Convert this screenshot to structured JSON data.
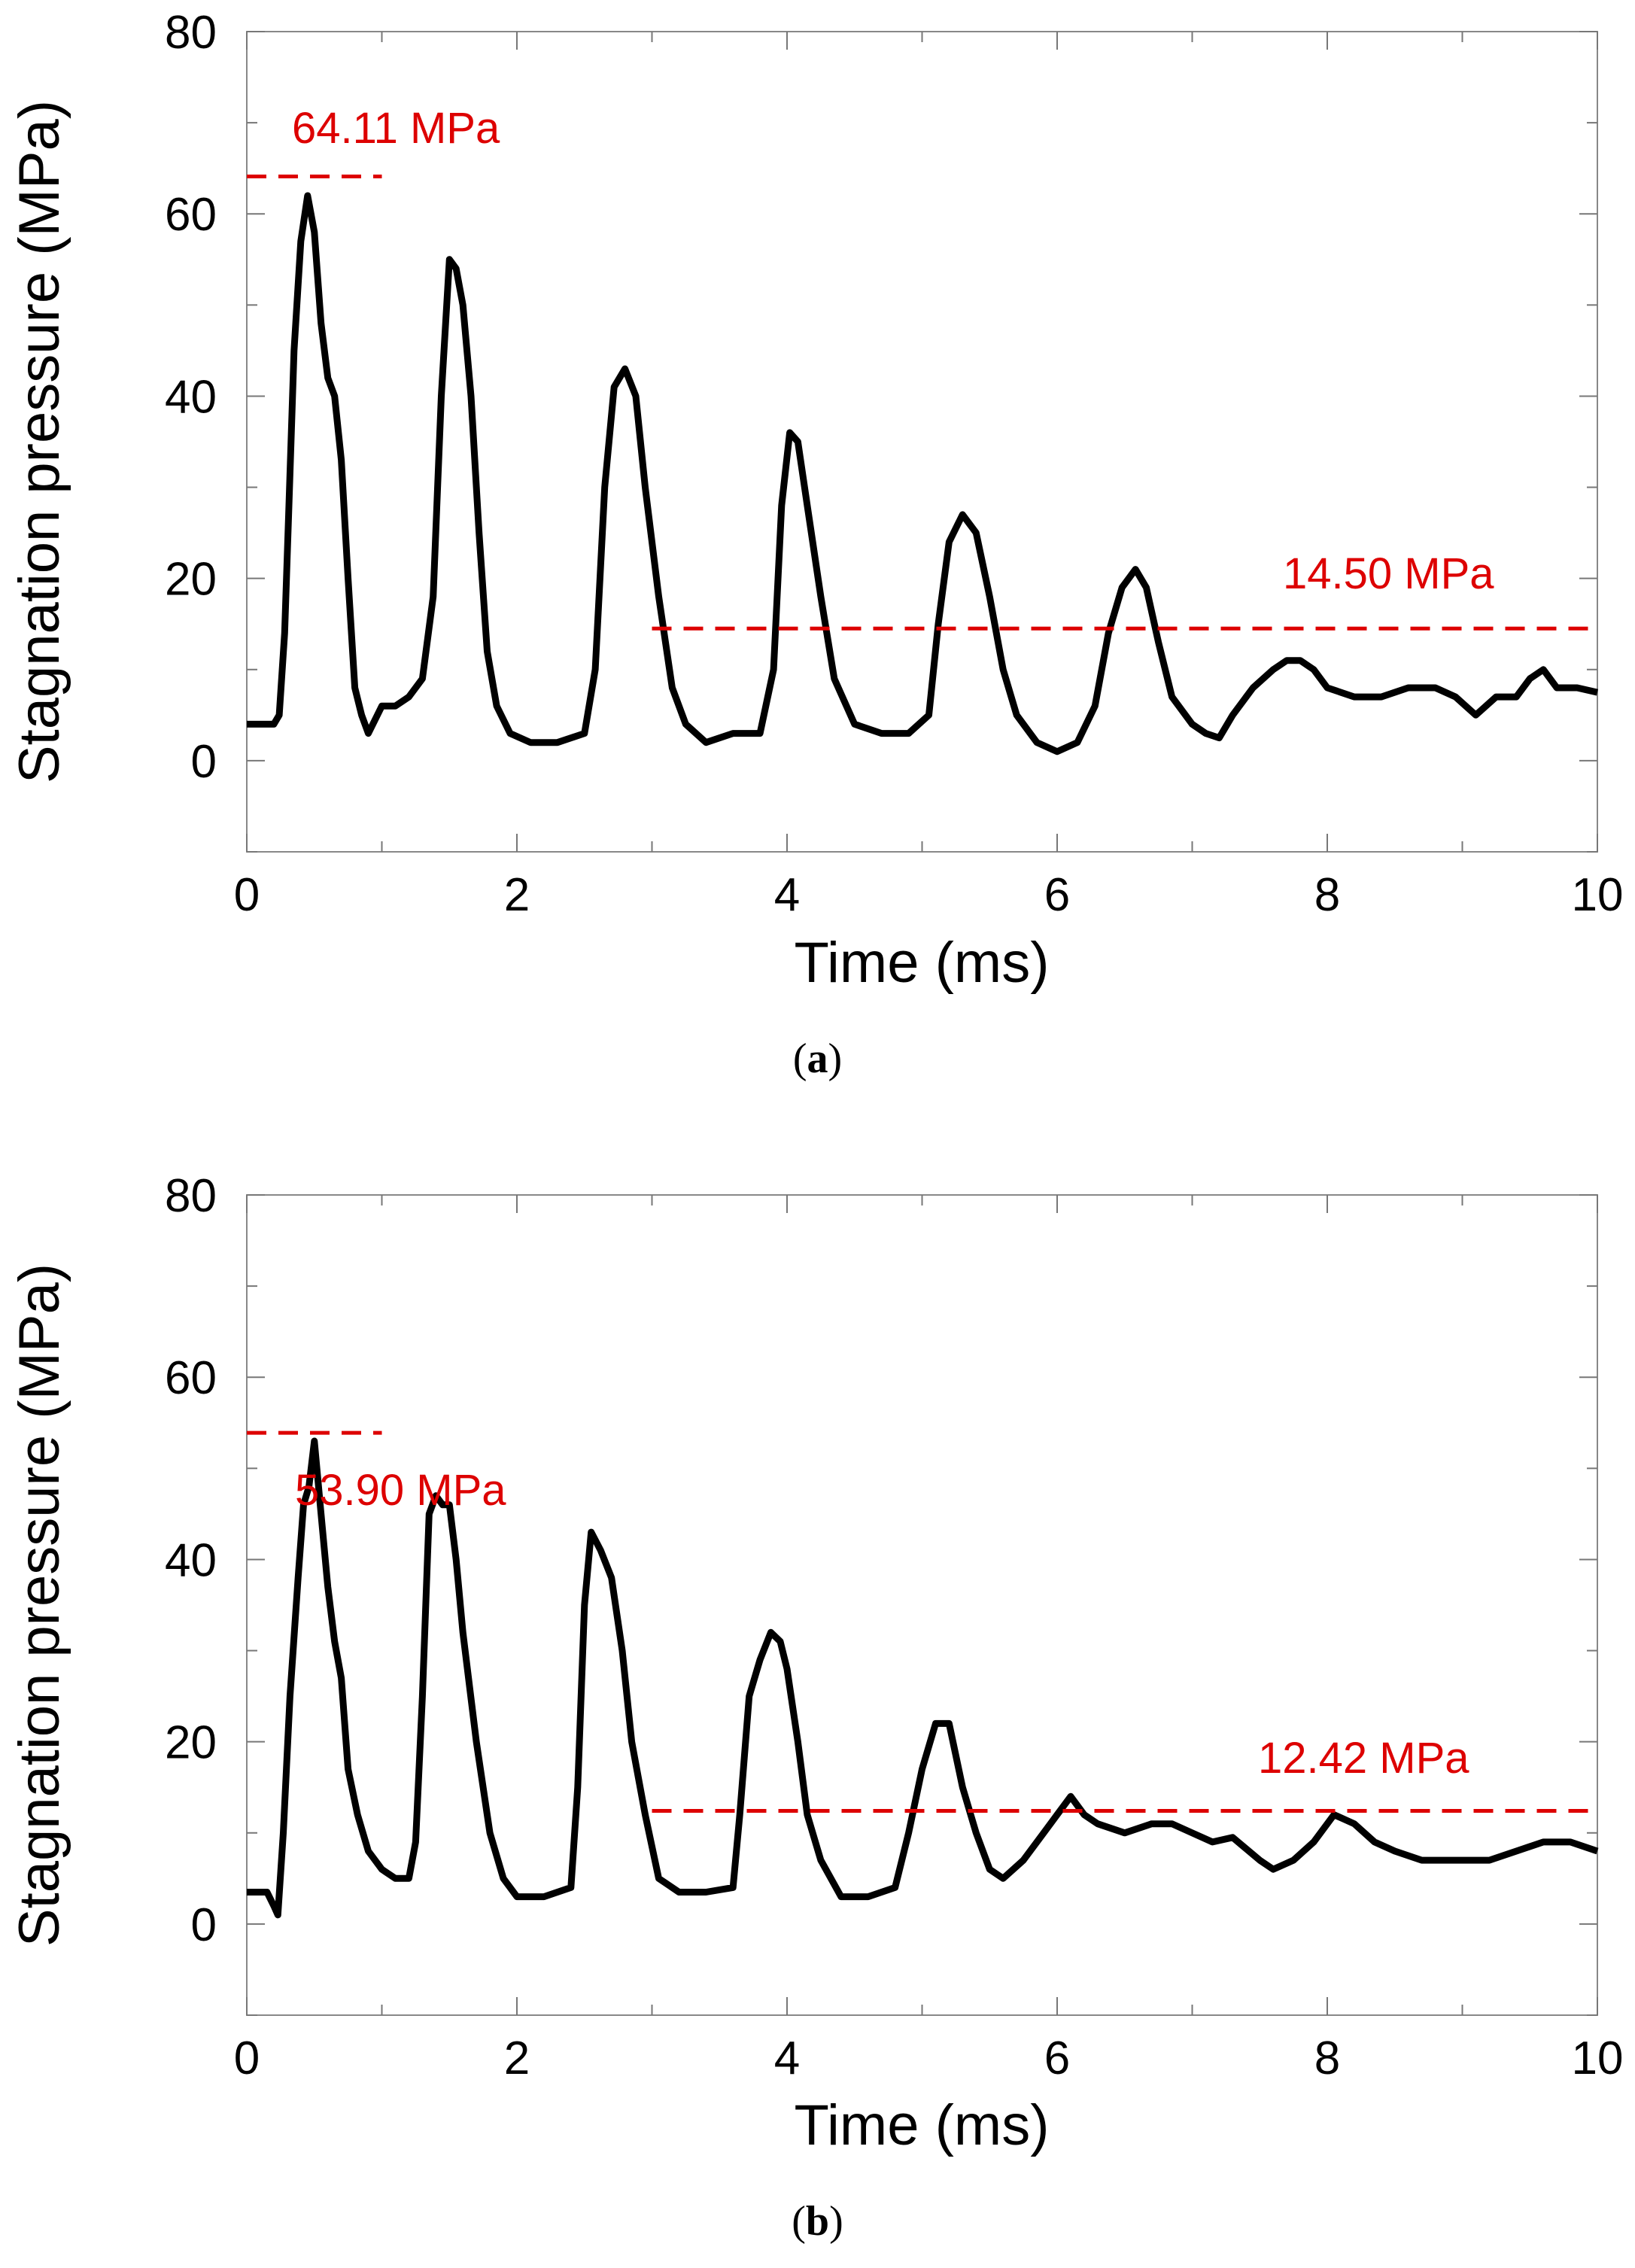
{
  "chart_data": [
    {
      "type": "line",
      "caption_label": "a",
      "xlabel": "Time (ms)",
      "ylabel": "Stagnation pressure (MPa)",
      "xlim": [
        0,
        10
      ],
      "ylim": [
        -10,
        80
      ],
      "xticks": [
        0,
        2,
        4,
        6,
        8,
        10
      ],
      "yticks": [
        0,
        20,
        40,
        60,
        80
      ],
      "grid": false,
      "series": [
        {
          "name": "stagnation pressure",
          "color": "#000000",
          "points": [
            [
              0,
              4
            ],
            [
              0.2,
              4
            ],
            [
              0.24,
              5
            ],
            [
              0.28,
              14
            ],
            [
              0.31,
              27
            ],
            [
              0.35,
              45
            ],
            [
              0.4,
              57
            ],
            [
              0.45,
              62
            ],
            [
              0.5,
              58
            ],
            [
              0.55,
              48
            ],
            [
              0.6,
              42
            ],
            [
              0.65,
              40
            ],
            [
              0.7,
              33
            ],
            [
              0.75,
              20
            ],
            [
              0.8,
              8
            ],
            [
              0.85,
              5
            ],
            [
              0.9,
              3
            ],
            [
              1.0,
              6
            ],
            [
              1.1,
              6
            ],
            [
              1.2,
              7
            ],
            [
              1.3,
              9
            ],
            [
              1.38,
              18
            ],
            [
              1.44,
              40
            ],
            [
              1.5,
              55
            ],
            [
              1.55,
              54
            ],
            [
              1.6,
              50
            ],
            [
              1.66,
              40
            ],
            [
              1.72,
              25
            ],
            [
              1.78,
              12
            ],
            [
              1.85,
              6
            ],
            [
              1.95,
              3
            ],
            [
              2.1,
              2
            ],
            [
              2.3,
              2
            ],
            [
              2.5,
              3
            ],
            [
              2.58,
              10
            ],
            [
              2.65,
              30
            ],
            [
              2.72,
              41
            ],
            [
              2.8,
              43
            ],
            [
              2.88,
              40
            ],
            [
              2.95,
              30
            ],
            [
              3.05,
              18
            ],
            [
              3.15,
              8
            ],
            [
              3.25,
              4
            ],
            [
              3.4,
              2
            ],
            [
              3.6,
              3
            ],
            [
              3.8,
              3
            ],
            [
              3.9,
              10
            ],
            [
              3.96,
              28
            ],
            [
              4.02,
              36
            ],
            [
              4.08,
              35
            ],
            [
              4.15,
              28
            ],
            [
              4.25,
              18
            ],
            [
              4.35,
              9
            ],
            [
              4.5,
              4
            ],
            [
              4.7,
              3
            ],
            [
              4.9,
              3
            ],
            [
              5.05,
              5
            ],
            [
              5.12,
              15
            ],
            [
              5.2,
              24
            ],
            [
              5.3,
              27
            ],
            [
              5.4,
              25
            ],
            [
              5.5,
              18
            ],
            [
              5.6,
              10
            ],
            [
              5.7,
              5
            ],
            [
              5.85,
              2
            ],
            [
              6.0,
              1
            ],
            [
              6.15,
              2
            ],
            [
              6.28,
              6
            ],
            [
              6.38,
              14
            ],
            [
              6.48,
              19
            ],
            [
              6.58,
              21
            ],
            [
              6.66,
              19
            ],
            [
              6.75,
              13
            ],
            [
              6.85,
              7
            ],
            [
              7.0,
              4
            ],
            [
              7.1,
              3
            ],
            [
              7.2,
              2.5
            ],
            [
              7.3,
              5
            ],
            [
              7.45,
              8
            ],
            [
              7.6,
              10
            ],
            [
              7.7,
              11
            ],
            [
              7.8,
              11
            ],
            [
              7.9,
              10
            ],
            [
              8.0,
              8
            ],
            [
              8.2,
              7
            ],
            [
              8.4,
              7
            ],
            [
              8.6,
              8
            ],
            [
              8.8,
              8
            ],
            [
              8.95,
              7
            ],
            [
              9.1,
              5
            ],
            [
              9.25,
              7
            ],
            [
              9.4,
              7
            ],
            [
              9.5,
              9
            ],
            [
              9.6,
              10
            ],
            [
              9.7,
              8
            ],
            [
              9.85,
              8
            ],
            [
              10.0,
              7.5
            ]
          ]
        }
      ],
      "annotations": [
        {
          "label": "64.11 MPa",
          "value": 64.11,
          "x_start": 0,
          "x_end": 1.0,
          "color": "#dd0000"
        },
        {
          "label": "14.50 MPa",
          "value": 14.5,
          "x_start": 3.0,
          "x_end": 10.0,
          "color": "#dd0000"
        }
      ]
    },
    {
      "type": "line",
      "caption_label": "b",
      "xlabel": "Time (ms)",
      "ylabel": "Stagnation pressure (MPa)",
      "xlim": [
        0,
        10
      ],
      "ylim": [
        -10,
        80
      ],
      "xticks": [
        0,
        2,
        4,
        6,
        8,
        10
      ],
      "yticks": [
        0,
        20,
        40,
        60,
        80
      ],
      "grid": false,
      "series": [
        {
          "name": "stagnation pressure",
          "color": "#000000",
          "points": [
            [
              0,
              3.5
            ],
            [
              0.15,
              3.5
            ],
            [
              0.2,
              2
            ],
            [
              0.23,
              1
            ],
            [
              0.27,
              10
            ],
            [
              0.32,
              25
            ],
            [
              0.38,
              38
            ],
            [
              0.42,
              46
            ],
            [
              0.46,
              48
            ],
            [
              0.5,
              53
            ],
            [
              0.55,
              45
            ],
            [
              0.6,
              37
            ],
            [
              0.65,
              31
            ],
            [
              0.7,
              27
            ],
            [
              0.75,
              17
            ],
            [
              0.82,
              12
            ],
            [
              0.9,
              8
            ],
            [
              1.0,
              6
            ],
            [
              1.1,
              5
            ],
            [
              1.2,
              5
            ],
            [
              1.25,
              9
            ],
            [
              1.3,
              25
            ],
            [
              1.35,
              45
            ],
            [
              1.4,
              47
            ],
            [
              1.45,
              46
            ],
            [
              1.5,
              46
            ],
            [
              1.55,
              40
            ],
            [
              1.6,
              32
            ],
            [
              1.7,
              20
            ],
            [
              1.8,
              10
            ],
            [
              1.9,
              5
            ],
            [
              2.0,
              3
            ],
            [
              2.2,
              3
            ],
            [
              2.4,
              4
            ],
            [
              2.45,
              15
            ],
            [
              2.5,
              35
            ],
            [
              2.55,
              43
            ],
            [
              2.62,
              41
            ],
            [
              2.7,
              38
            ],
            [
              2.78,
              30
            ],
            [
              2.85,
              20
            ],
            [
              2.95,
              12
            ],
            [
              3.05,
              5
            ],
            [
              3.2,
              3.5
            ],
            [
              3.4,
              3.5
            ],
            [
              3.6,
              4
            ],
            [
              3.65,
              12
            ],
            [
              3.72,
              25
            ],
            [
              3.8,
              29
            ],
            [
              3.88,
              32
            ],
            [
              3.95,
              31
            ],
            [
              4.0,
              28
            ],
            [
              4.08,
              20
            ],
            [
              4.15,
              12
            ],
            [
              4.25,
              7
            ],
            [
              4.4,
              3
            ],
            [
              4.6,
              3
            ],
            [
              4.8,
              4
            ],
            [
              4.9,
              10
            ],
            [
              5.0,
              17
            ],
            [
              5.1,
              22
            ],
            [
              5.2,
              22
            ],
            [
              5.3,
              15
            ],
            [
              5.4,
              10
            ],
            [
              5.5,
              6
            ],
            [
              5.6,
              5
            ],
            [
              5.75,
              7
            ],
            [
              5.9,
              10
            ],
            [
              6.0,
              12
            ],
            [
              6.1,
              14
            ],
            [
              6.2,
              12
            ],
            [
              6.3,
              11
            ],
            [
              6.5,
              10
            ],
            [
              6.7,
              11
            ],
            [
              6.85,
              11
            ],
            [
              7.0,
              10
            ],
            [
              7.15,
              9
            ],
            [
              7.3,
              9.5
            ],
            [
              7.5,
              7
            ],
            [
              7.6,
              6
            ],
            [
              7.75,
              7
            ],
            [
              7.9,
              9
            ],
            [
              8.05,
              12
            ],
            [
              8.2,
              11
            ],
            [
              8.35,
              9
            ],
            [
              8.5,
              8
            ],
            [
              8.7,
              7
            ],
            [
              9.0,
              7
            ],
            [
              9.2,
              7
            ],
            [
              9.4,
              8
            ],
            [
              9.6,
              9
            ],
            [
              9.8,
              9
            ],
            [
              10.0,
              8
            ]
          ]
        }
      ],
      "annotations": [
        {
          "label": "53.90 MPa",
          "value": 53.9,
          "x_start": 0,
          "x_end": 1.0,
          "color": "#dd0000"
        },
        {
          "label": "12.42 MPa",
          "value": 12.42,
          "x_start": 3.0,
          "x_end": 10.0,
          "color": "#dd0000"
        }
      ]
    }
  ]
}
